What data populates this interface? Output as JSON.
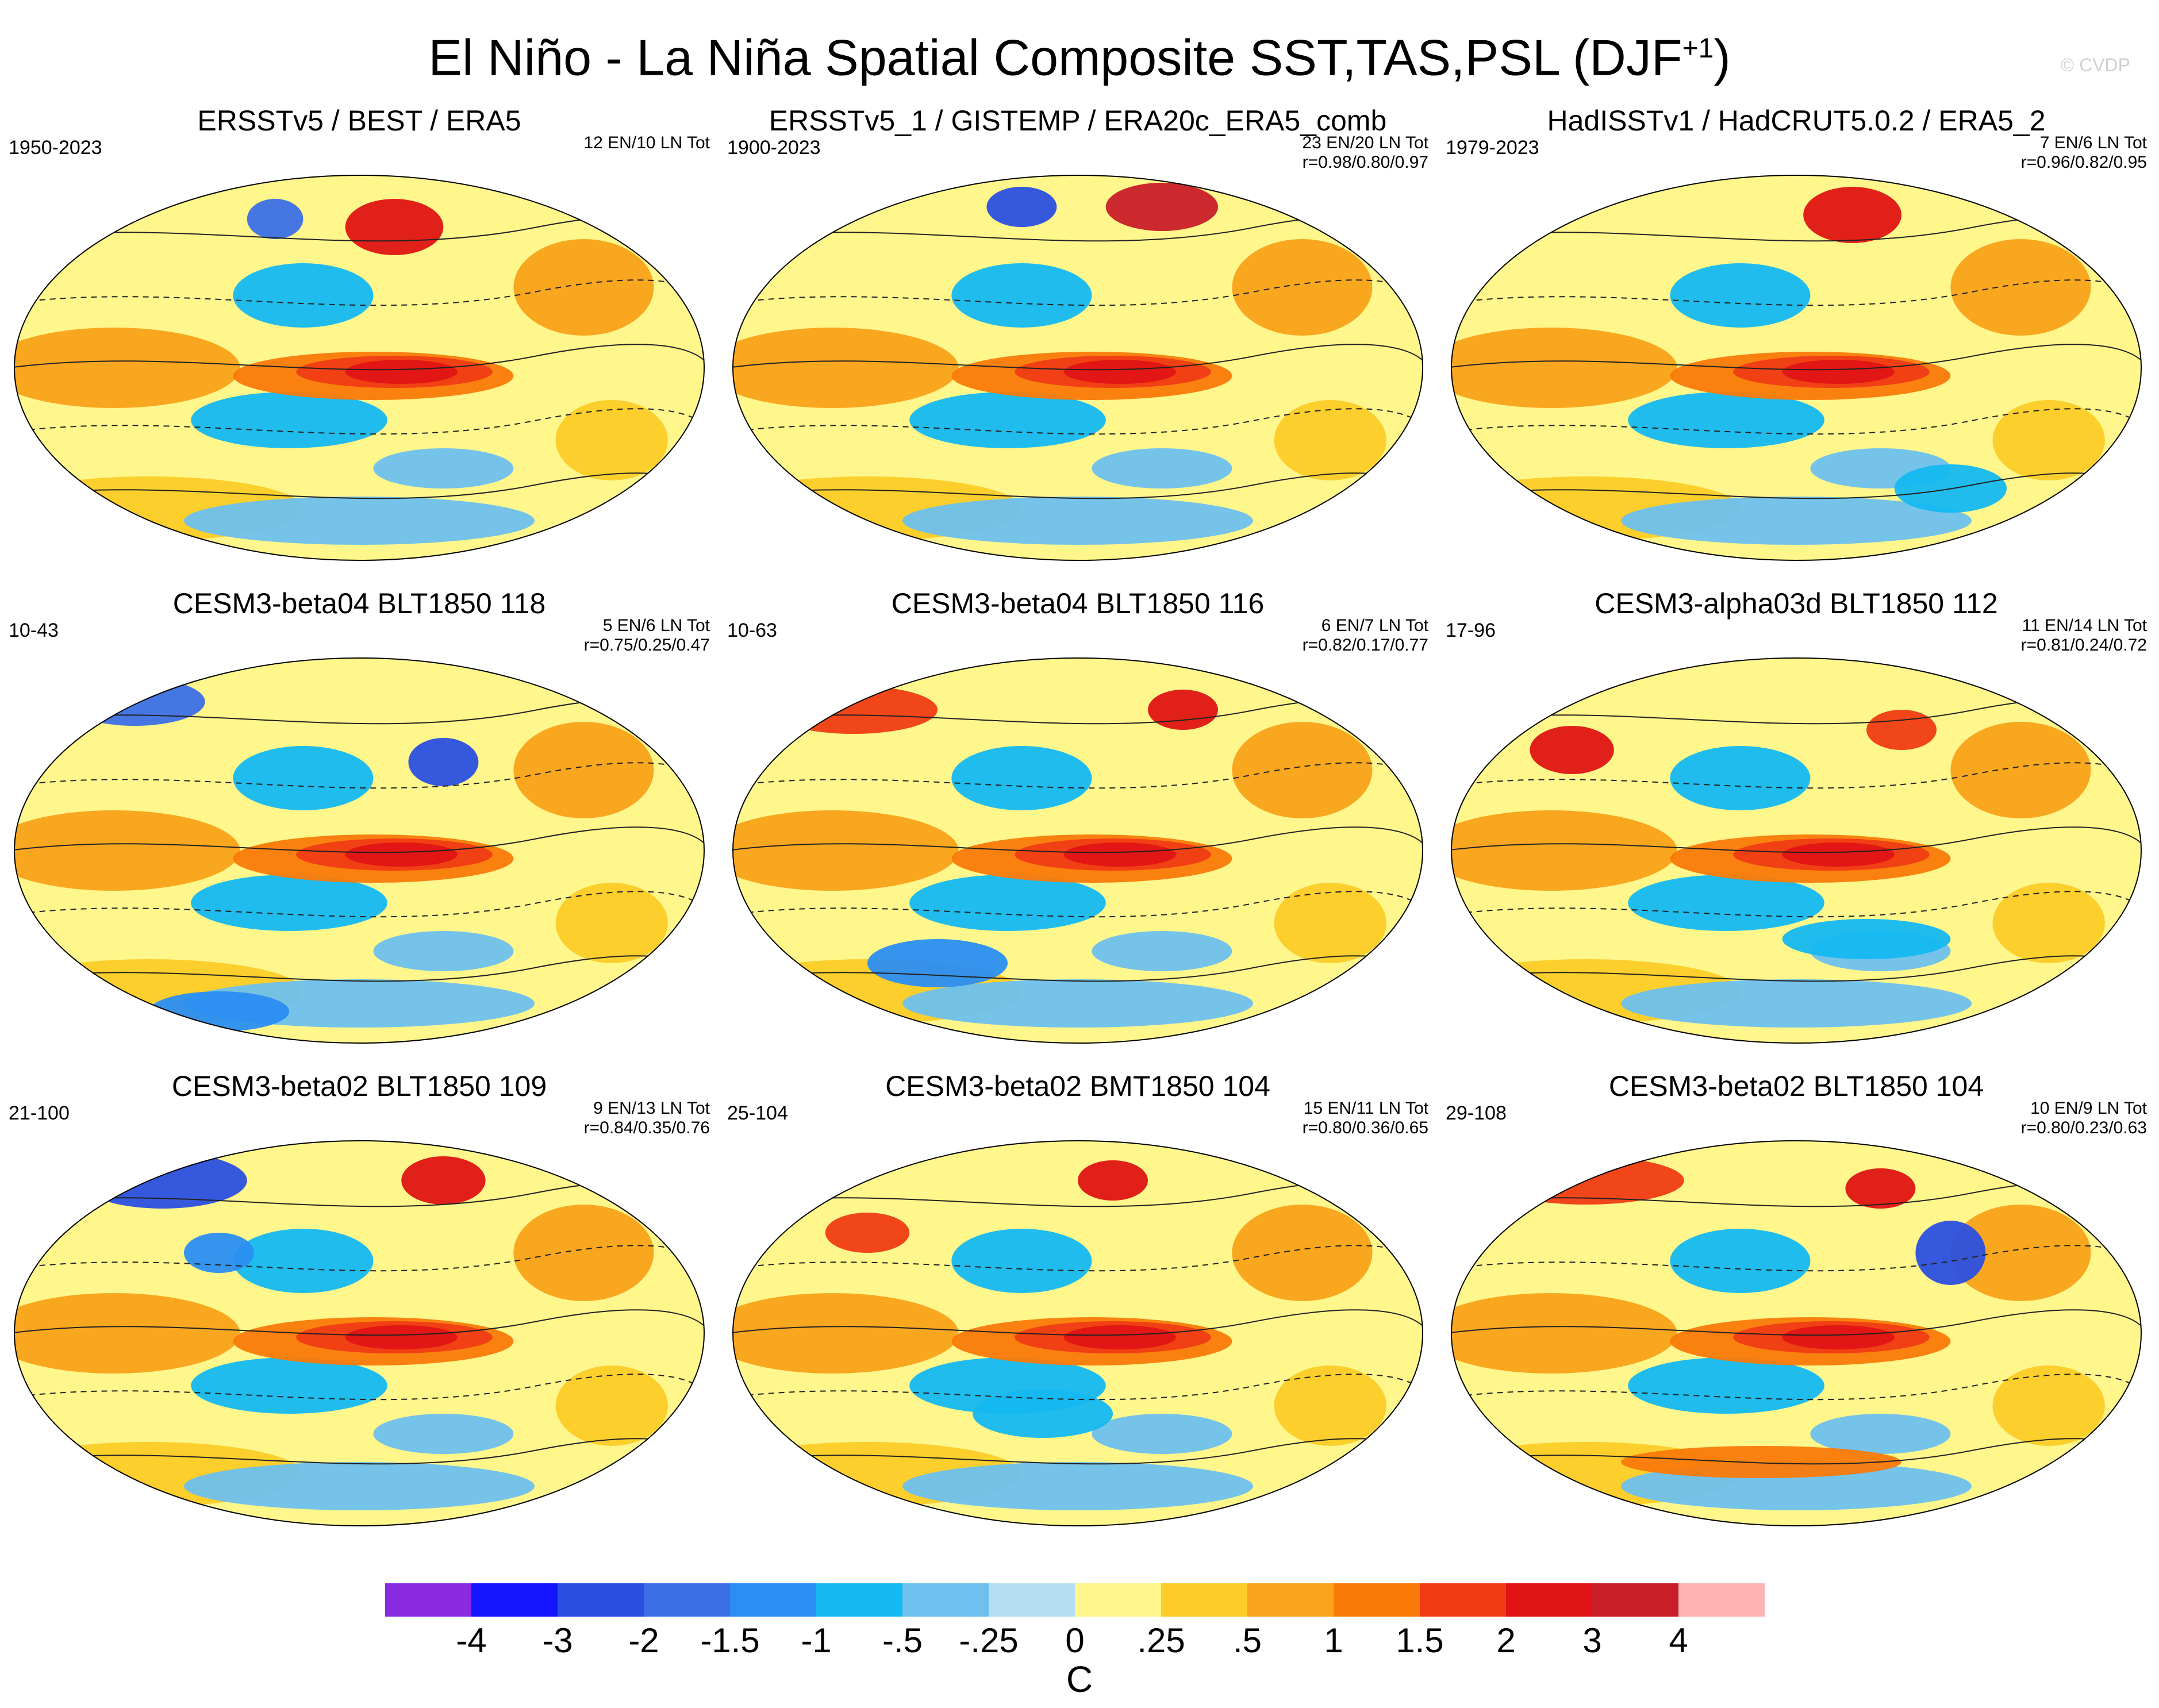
{
  "title": {
    "main": "El Niño - La Niña Spatial Composite SST,TAS,PSL (DJF",
    "sup": "+1",
    "close": ")"
  },
  "watermark": "© CVDP",
  "colors": {
    "land_outline": "#ffffff",
    "contour": "#222222",
    "palette": [
      "#8a2be2",
      "#1414ff",
      "#2a4fe0",
      "#3c6fe6",
      "#2a8ef2",
      "#14b8f2",
      "#6ec0ee",
      "#b4def2",
      "#fff68c",
      "#fccc28",
      "#faa21a",
      "#fa7a0a",
      "#f03c14",
      "#e01414",
      "#c81e28",
      "#ffb4b4"
    ]
  },
  "chart_data": [
    {
      "type": "heatmap",
      "name": "panel-1",
      "title": "ERSSTv5 / BEST / ERA5",
      "years": "1950-2023",
      "counts": "12 EN/10 LN Tot",
      "corr": "",
      "variables": [
        "SST",
        "TAS",
        "PSL"
      ],
      "season": "DJF+1"
    },
    {
      "type": "heatmap",
      "name": "panel-2",
      "title": "ERSSTv5_1 / GISTEMP / ERA20c_ERA5_comb",
      "years": "1900-2023",
      "counts": "23 EN/20 LN Tot",
      "corr": "r=0.98/0.80/0.97",
      "variables": [
        "SST",
        "TAS",
        "PSL"
      ],
      "season": "DJF+1"
    },
    {
      "type": "heatmap",
      "name": "panel-3",
      "title": "HadISSTv1 / HadCRUT5.0.2 / ERA5_2",
      "years": "1979-2023",
      "counts": "7 EN/6 LN Tot",
      "corr": "r=0.96/0.82/0.95",
      "variables": [
        "SST",
        "TAS",
        "PSL"
      ],
      "season": "DJF+1"
    },
    {
      "type": "heatmap",
      "name": "panel-4",
      "title": "CESM3-beta04 BLT1850 118",
      "years": "10-43",
      "counts": "5 EN/6 LN Tot",
      "corr": "r=0.75/0.25/0.47",
      "variables": [
        "SST",
        "TAS",
        "PSL"
      ],
      "season": "DJF+1"
    },
    {
      "type": "heatmap",
      "name": "panel-5",
      "title": "CESM3-beta04 BLT1850 116",
      "years": "10-63",
      "counts": "6 EN/7 LN Tot",
      "corr": "r=0.82/0.17/0.77",
      "variables": [
        "SST",
        "TAS",
        "PSL"
      ],
      "season": "DJF+1"
    },
    {
      "type": "heatmap",
      "name": "panel-6",
      "title": "CESM3-alpha03d BLT1850 112",
      "years": "17-96",
      "counts": "11 EN/14 LN Tot",
      "corr": "r=0.81/0.24/0.72",
      "variables": [
        "SST",
        "TAS",
        "PSL"
      ],
      "season": "DJF+1"
    },
    {
      "type": "heatmap",
      "name": "panel-7",
      "title": "CESM3-beta02 BLT1850 109",
      "years": "21-100",
      "counts": "9 EN/13 LN Tot",
      "corr": "r=0.84/0.35/0.76",
      "variables": [
        "SST",
        "TAS",
        "PSL"
      ],
      "season": "DJF+1"
    },
    {
      "type": "heatmap",
      "name": "panel-8",
      "title": "CESM3-beta02 BMT1850 104",
      "years": "25-104",
      "counts": "15 EN/11 LN Tot",
      "corr": "r=0.80/0.36/0.65",
      "variables": [
        "SST",
        "TAS",
        "PSL"
      ],
      "season": "DJF+1"
    },
    {
      "type": "heatmap",
      "name": "panel-9",
      "title": "CESM3-beta02 BLT1850 104",
      "years": "29-108",
      "counts": "10 EN/9 LN Tot",
      "corr": "r=0.80/0.23/0.63",
      "variables": [
        "SST",
        "TAS",
        "PSL"
      ],
      "season": "DJF+1"
    }
  ],
  "colorbar": {
    "labels": [
      "-4",
      "-3",
      "-2",
      "-1.5",
      "-1",
      "-.5",
      "-.25",
      "0",
      ".25",
      ".5",
      "1",
      "1.5",
      "2",
      "3",
      "4"
    ],
    "unit": "C"
  }
}
